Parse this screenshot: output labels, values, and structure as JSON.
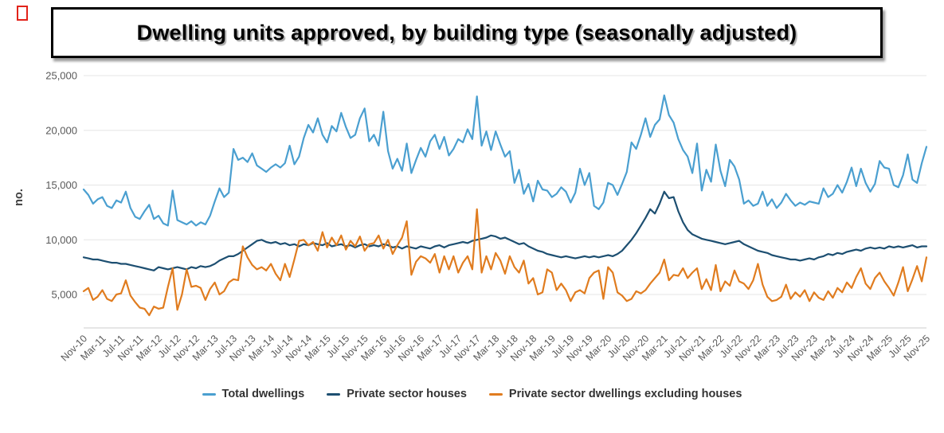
{
  "title": "Dwelling units approved, by building type (seasonally adjusted)",
  "broken_image_indicator": "broken-image",
  "colors": {
    "grid": "#e6e6e6",
    "axis_line": "#cccccc",
    "tick_label": "#595959",
    "axis_title": "#404040",
    "legend_text": "#333333",
    "title_border": "#000000"
  },
  "chart_data": {
    "type": "line",
    "title": "Dwelling units approved, by building type (seasonally adjusted)",
    "ylabel": "no.",
    "xlabel": "",
    "grid": "horizontal",
    "legend_position": "bottom",
    "ylim": [
      1950,
      25000
    ],
    "y_ticks": [
      25000,
      20000,
      15000,
      10000,
      5000
    ],
    "y_tick_labels": [
      "25,000",
      "20,000",
      "15,000",
      "10,000",
      "5,000"
    ],
    "x_label_every_n_points": 4,
    "x_labels": [
      "Nov-10",
      "Mar-11",
      "Jul-11",
      "Nov-11",
      "Mar-12",
      "Jul-12",
      "Nov-12",
      "Mar-13",
      "Jul-13",
      "Nov-13",
      "Mar-14",
      "Jul-14",
      "Nov-14",
      "Mar-15",
      "Jul-15",
      "Nov-15",
      "Mar-16",
      "Jul-16",
      "Nov-16",
      "Mar-17",
      "Jul-17",
      "Nov-17",
      "Mar-18",
      "Jul-18",
      "Nov-18",
      "Mar-19",
      "Jul-19",
      "Nov-19",
      "Mar-20",
      "Jul-20",
      "Nov-20",
      "Mar-21",
      "Jul-21",
      "Nov-21",
      "Mar-22",
      "Jul-22",
      "Nov-22",
      "Mar-23",
      "Jul-23",
      "Nov-23",
      "Mar-24",
      "Jul-24",
      "Nov-24",
      "Mar-25",
      "Jul-25",
      "Nov-25"
    ],
    "x_start": "Nov-2010",
    "x_end": "Nov-2025",
    "x_frequency": "monthly",
    "series": [
      {
        "name": "Total dwellings",
        "color": "#4A9FD0",
        "values": [
          14600,
          14100,
          13300,
          13700,
          13900,
          13100,
          12900,
          13600,
          13400,
          14400,
          12900,
          12100,
          11900,
          12600,
          13200,
          11900,
          12200,
          11500,
          11300,
          14500,
          11800,
          11600,
          11400,
          11700,
          11300,
          11600,
          11400,
          12200,
          13500,
          14700,
          13900,
          14300,
          18300,
          17300,
          17500,
          17100,
          17900,
          16800,
          16500,
          16200,
          16600,
          16900,
          16600,
          17000,
          18600,
          16900,
          17600,
          19300,
          20500,
          19800,
          21100,
          19600,
          18900,
          20400,
          19900,
          21600,
          20300,
          19300,
          19600,
          21100,
          22000,
          19000,
          19600,
          18600,
          21700,
          18100,
          16500,
          17400,
          16300,
          18800,
          16100,
          17300,
          18400,
          17600,
          19000,
          19600,
          18300,
          19400,
          17700,
          18300,
          19200,
          18900,
          20100,
          19200,
          23100,
          18600,
          19900,
          18200,
          19900,
          18700,
          17600,
          18100,
          15200,
          16400,
          14200,
          15100,
          13500,
          15400,
          14600,
          14500,
          13900,
          14200,
          14800,
          14400,
          13400,
          14300,
          16500,
          15000,
          16100,
          13100,
          12800,
          13400,
          15200,
          15000,
          14100,
          15100,
          16200,
          18900,
          18300,
          19600,
          21100,
          19400,
          20500,
          21000,
          23200,
          21400,
          20700,
          19200,
          18200,
          17600,
          16100,
          18800,
          14500,
          16400,
          15300,
          18700,
          16300,
          14900,
          17300,
          16700,
          15500,
          13300,
          13600,
          13100,
          13300,
          14400,
          13100,
          13700,
          12900,
          13400,
          14200,
          13600,
          13100,
          13400,
          13200,
          13500,
          13400,
          13300,
          14700,
          13900,
          14200,
          15000,
          14300,
          15300,
          16600,
          14900,
          16500,
          15200,
          14400,
          15100,
          17200,
          16600,
          16500,
          15000,
          14800,
          15900,
          17800,
          15500,
          15200,
          17000,
          18500
        ]
      },
      {
        "name": "Private sector houses",
        "color": "#1D4F71",
        "values": [
          8400,
          8300,
          8200,
          8200,
          8100,
          8000,
          7900,
          7900,
          7800,
          7800,
          7700,
          7600,
          7500,
          7400,
          7300,
          7200,
          7500,
          7400,
          7300,
          7400,
          7500,
          7400,
          7300,
          7500,
          7400,
          7600,
          7500,
          7600,
          7800,
          8100,
          8300,
          8500,
          8500,
          8700,
          9000,
          9300,
          9600,
          9900,
          10000,
          9800,
          9700,
          9800,
          9600,
          9700,
          9500,
          9600,
          9400,
          9600,
          9500,
          9700,
          9600,
          9500,
          9700,
          9400,
          9500,
          9600,
          9400,
          9500,
          9300,
          9500,
          9600,
          9400,
          9500,
          9400,
          9600,
          9500,
          9300,
          9400,
          9200,
          9400,
          9300,
          9200,
          9400,
          9300,
          9200,
          9400,
          9500,
          9300,
          9500,
          9600,
          9700,
          9800,
          9700,
          9900,
          10000,
          10100,
          10200,
          10400,
          10300,
          10100,
          10200,
          10000,
          9800,
          9600,
          9700,
          9400,
          9200,
          9000,
          8900,
          8700,
          8600,
          8500,
          8400,
          8500,
          8400,
          8300,
          8400,
          8500,
          8400,
          8500,
          8400,
          8500,
          8600,
          8500,
          8700,
          9000,
          9500,
          10000,
          10600,
          11300,
          12000,
          12800,
          12400,
          13300,
          14400,
          13800,
          13900,
          12600,
          11600,
          10900,
          10500,
          10300,
          10100,
          10000,
          9900,
          9800,
          9700,
          9600,
          9700,
          9800,
          9900,
          9600,
          9400,
          9200,
          9000,
          8900,
          8800,
          8600,
          8500,
          8400,
          8300,
          8200,
          8200,
          8100,
          8200,
          8300,
          8200,
          8400,
          8500,
          8700,
          8600,
          8800,
          8700,
          8900,
          9000,
          9100,
          9000,
          9200,
          9300,
          9200,
          9300,
          9200,
          9400,
          9300,
          9400,
          9300,
          9400,
          9500,
          9300,
          9400,
          9400
        ]
      },
      {
        "name": "Private sector dwellings excluding houses",
        "color": "#E07C1F",
        "values": [
          5300,
          5600,
          4500,
          4800,
          5400,
          4600,
          4400,
          5000,
          5100,
          6300,
          4900,
          4300,
          3800,
          3700,
          3100,
          3900,
          3700,
          3800,
          5700,
          7400,
          3600,
          5000,
          7300,
          5700,
          5800,
          5600,
          4500,
          5500,
          6100,
          5000,
          5300,
          6100,
          6400,
          6300,
          9400,
          8400,
          7700,
          7300,
          7500,
          7200,
          7800,
          6900,
          6300,
          7800,
          6600,
          8200,
          9900,
          10000,
          9500,
          9800,
          9000,
          10700,
          9300,
          10200,
          9500,
          10400,
          9100,
          9900,
          9400,
          10300,
          9000,
          9600,
          9700,
          10400,
          9200,
          10000,
          8700,
          9500,
          10200,
          11700,
          6800,
          8000,
          8500,
          8300,
          7900,
          8700,
          7000,
          8500,
          7300,
          8500,
          7000,
          7900,
          8500,
          7300,
          12800,
          7000,
          8500,
          7300,
          8800,
          8100,
          6900,
          8500,
          7500,
          7000,
          8100,
          6000,
          6500,
          5000,
          5200,
          7300,
          7000,
          5400,
          6000,
          5400,
          4400,
          5200,
          5400,
          5100,
          6500,
          7000,
          7200,
          4600,
          7500,
          7000,
          5200,
          4900,
          4400,
          4600,
          5300,
          5100,
          5400,
          6000,
          6500,
          7000,
          8200,
          6300,
          6800,
          6700,
          7400,
          6500,
          7000,
          7400,
          5500,
          6400,
          5400,
          7700,
          5300,
          6200,
          5800,
          7200,
          6200,
          6000,
          5500,
          6300,
          7800,
          5900,
          4800,
          4400,
          4500,
          4800,
          5900,
          4600,
          5200,
          4800,
          5400,
          4400,
          5200,
          4700,
          4500,
          5300,
          4700,
          5600,
          5200,
          6100,
          5600,
          6600,
          7400,
          6000,
          5500,
          6500,
          7000,
          6200,
          5600,
          4900,
          6100,
          7500,
          5300,
          6400,
          7600,
          6200,
          8400
        ]
      }
    ]
  }
}
